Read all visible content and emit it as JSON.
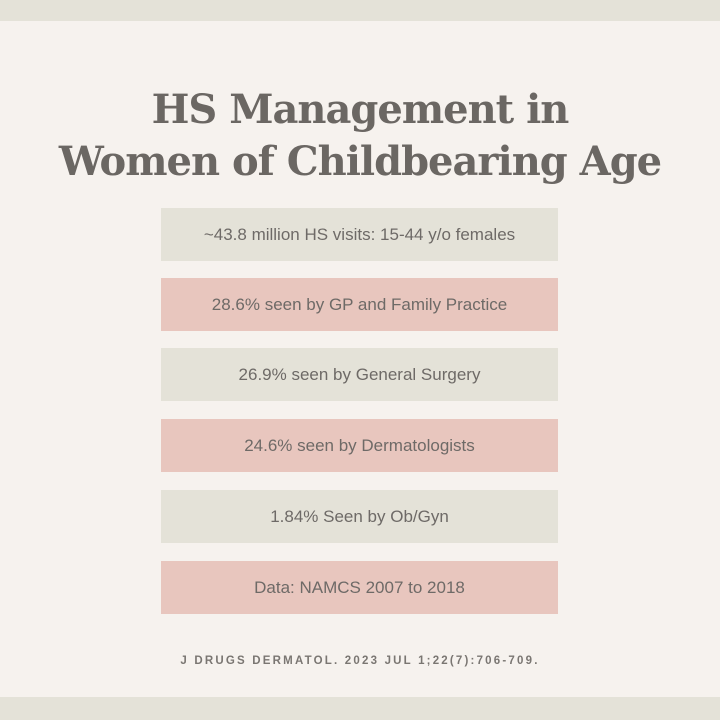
{
  "title": {
    "line1": "HS Management in",
    "line2": "Women of Childbearing Age"
  },
  "items": [
    {
      "text": "~43.8 million HS visits: 15-44 y/o females",
      "color": "#e4e2d8"
    },
    {
      "text": "28.6% seen by GP and Family Practice",
      "color": "#e8c6be"
    },
    {
      "text": "26.9% seen by General Surgery",
      "color": "#e4e2d8"
    },
    {
      "text": "24.6% seen by Dermatologists",
      "color": "#e8c6be"
    },
    {
      "text": "1.84% Seen by Ob/Gyn",
      "color": "#e4e2d8"
    },
    {
      "text": "Data: NAMCS 2007 to 2018",
      "color": "#e8c6be"
    }
  ],
  "citation": "J DRUGS DERMATOL. 2023 JUL 1;22(7):706-709."
}
